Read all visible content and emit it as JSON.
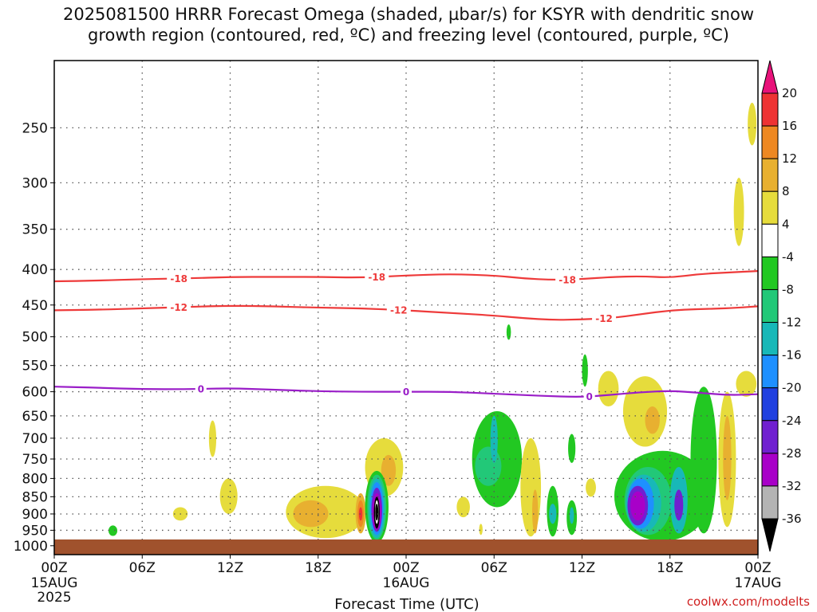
{
  "title_line1": "2025081500 HRRR Forecast Omega (shaded, µbar/s) for KSYR with dendritic snow",
  "title_line2": "growth region (contoured, red, ºC) and freezing level (contoured, purple, ºC)",
  "credit": "coolwx.com/modelts",
  "chart_data": {
    "type": "contour",
    "title": "2025081500 HRRR Forecast Omega (shaded, µbar/s) for KSYR with dendritic snow growth region (contoured, red, ºC) and freezing level (contoured, purple, ºC)",
    "xlabel": "Forecast Time (UTC)",
    "ylabel": "",
    "x_range_hours": [
      0,
      48
    ],
    "x_ticks": [
      {
        "hour": 0,
        "label": "00Z",
        "sub1": "15AUG",
        "sub2": "2025"
      },
      {
        "hour": 6,
        "label": "06Z",
        "sub1": "",
        "sub2": ""
      },
      {
        "hour": 12,
        "label": "12Z",
        "sub1": "",
        "sub2": ""
      },
      {
        "hour": 18,
        "label": "18Z",
        "sub1": "",
        "sub2": ""
      },
      {
        "hour": 24,
        "label": "00Z",
        "sub1": "16AUG",
        "sub2": ""
      },
      {
        "hour": 30,
        "label": "06Z",
        "sub1": "",
        "sub2": ""
      },
      {
        "hour": 36,
        "label": "12Z",
        "sub1": "",
        "sub2": ""
      },
      {
        "hour": 42,
        "label": "18Z",
        "sub1": "",
        "sub2": ""
      },
      {
        "hour": 48,
        "label": "00Z",
        "sub1": "17AUG",
        "sub2": ""
      }
    ],
    "y_ticks_hpa": [
      250,
      300,
      350,
      400,
      450,
      500,
      550,
      600,
      650,
      700,
      750,
      800,
      850,
      900,
      950,
      1000
    ],
    "y_range_hpa": [
      200,
      1030
    ],
    "y_scale": "log",
    "grid": true,
    "colorbar": {
      "label_values": [
        20,
        16,
        12,
        8,
        4,
        -4,
        -8,
        -12,
        -16,
        -20,
        -24,
        -28,
        -32,
        -36
      ],
      "colors": [
        "#e8127a",
        "#ee3333",
        "#ee8822",
        "#e8b030",
        "#e6dc3c",
        "#ffffff",
        "#22c822",
        "#22c878",
        "#18b8b8",
        "#1e90ff",
        "#2040e0",
        "#7020d0",
        "#a800c8",
        "#b4b4b4",
        "#000000"
      ]
    },
    "red_contours": [
      {
        "level": -18,
        "label": "-18",
        "points": [
          [
            0,
            416
          ],
          [
            3,
            415
          ],
          [
            6,
            413
          ],
          [
            9,
            412
          ],
          [
            12,
            410
          ],
          [
            15,
            410
          ],
          [
            18,
            410
          ],
          [
            21,
            411
          ],
          [
            24,
            408
          ],
          [
            27,
            406
          ],
          [
            30,
            408
          ],
          [
            32,
            412
          ],
          [
            34,
            414
          ],
          [
            36,
            413
          ],
          [
            38,
            410
          ],
          [
            40,
            409
          ],
          [
            42,
            411
          ],
          [
            44,
            406
          ],
          [
            46,
            404
          ],
          [
            48,
            402
          ]
        ],
        "label_hours": [
          8.5,
          22,
          35
        ]
      },
      {
        "level": -12,
        "label": "-12",
        "points": [
          [
            0,
            458
          ],
          [
            3,
            457
          ],
          [
            6,
            455
          ],
          [
            9,
            453
          ],
          [
            12,
            451
          ],
          [
            15,
            452
          ],
          [
            18,
            454
          ],
          [
            21,
            455
          ],
          [
            24,
            458
          ],
          [
            27,
            462
          ],
          [
            30,
            466
          ],
          [
            32,
            470
          ],
          [
            34,
            473
          ],
          [
            36,
            472
          ],
          [
            38,
            470
          ],
          [
            40,
            464
          ],
          [
            42,
            458
          ],
          [
            44,
            456
          ],
          [
            46,
            455
          ],
          [
            48,
            452
          ]
        ],
        "label_hours": [
          8.5,
          23.5,
          37.5
        ]
      }
    ],
    "purple_contours": [
      {
        "level": 0,
        "label": "0",
        "points": [
          [
            0,
            590
          ],
          [
            3,
            592
          ],
          [
            6,
            595
          ],
          [
            9,
            595
          ],
          [
            12,
            593
          ],
          [
            15,
            596
          ],
          [
            18,
            599
          ],
          [
            21,
            600
          ],
          [
            24,
            600
          ],
          [
            27,
            600
          ],
          [
            30,
            604
          ],
          [
            33,
            608
          ],
          [
            36,
            611
          ],
          [
            38,
            606
          ],
          [
            40,
            601
          ],
          [
            42,
            598
          ],
          [
            44,
            602
          ],
          [
            46,
            607
          ],
          [
            48,
            605
          ]
        ],
        "label_hours": [
          10,
          24,
          36.5
        ]
      }
    ],
    "omega_regions": [
      {
        "hour": 4.0,
        "hw": 0.3,
        "top": 935,
        "bottom": 968,
        "value": -5
      },
      {
        "hour": 10.8,
        "hw": 0.25,
        "top": 660,
        "bottom": 745,
        "value": 5
      },
      {
        "hour": 8.6,
        "hw": 0.5,
        "top": 880,
        "bottom": 920,
        "value": 5
      },
      {
        "hour": 11.9,
        "hw": 0.6,
        "top": 800,
        "bottom": 900,
        "value": 5
      },
      {
        "hour": 18.5,
        "hw": 2.7,
        "top": 820,
        "bottom": 975,
        "value": 5
      },
      {
        "hour": 17.5,
        "hw": 1.2,
        "top": 860,
        "bottom": 940,
        "value": 9
      },
      {
        "hour": 20.9,
        "hw": 0.35,
        "top": 840,
        "bottom": 960,
        "value": 9
      },
      {
        "hour": 20.9,
        "hw": 0.22,
        "top": 860,
        "bottom": 940,
        "value": 14
      },
      {
        "hour": 20.9,
        "hw": 0.12,
        "top": 880,
        "bottom": 920,
        "value": 18
      },
      {
        "hour": 22.5,
        "hw": 1.3,
        "top": 700,
        "bottom": 850,
        "value": 5
      },
      {
        "hour": 22.8,
        "hw": 0.5,
        "top": 740,
        "bottom": 820,
        "value": 9
      },
      {
        "hour": 22.0,
        "hw": 0.8,
        "top": 780,
        "bottom": 990,
        "value": -6
      },
      {
        "hour": 22.0,
        "hw": 0.65,
        "top": 790,
        "bottom": 980,
        "value": -10
      },
      {
        "hour": 22.0,
        "hw": 0.55,
        "top": 800,
        "bottom": 975,
        "value": -14
      },
      {
        "hour": 22.0,
        "hw": 0.45,
        "top": 810,
        "bottom": 965,
        "value": -18
      },
      {
        "hour": 22.0,
        "hw": 0.37,
        "top": 825,
        "bottom": 955,
        "value": -26
      },
      {
        "hour": 22.0,
        "hw": 0.3,
        "top": 840,
        "bottom": 950,
        "value": -30
      },
      {
        "hour": 22.0,
        "hw": 0.2,
        "top": 850,
        "bottom": 945,
        "value": -40
      },
      {
        "hour": 22.0,
        "hw": 0.12,
        "top": 860,
        "bottom": 930,
        "value": 0
      },
      {
        "hour": 22.0,
        "hw": 0.09,
        "top": 870,
        "bottom": 920,
        "value": -40
      },
      {
        "hour": 27.9,
        "hw": 0.45,
        "top": 850,
        "bottom": 910,
        "value": 5
      },
      {
        "hour": 29.1,
        "hw": 0.12,
        "top": 930,
        "bottom": 965,
        "value": 5
      },
      {
        "hour": 30.2,
        "hw": 1.7,
        "top": 640,
        "bottom": 880,
        "value": -5
      },
      {
        "hour": 29.6,
        "hw": 0.9,
        "top": 720,
        "bottom": 820,
        "value": -9
      },
      {
        "hour": 30.0,
        "hw": 0.25,
        "top": 650,
        "bottom": 760,
        "value": -14
      },
      {
        "hour": 32.5,
        "hw": 0.7,
        "top": 700,
        "bottom": 970,
        "value": 5
      },
      {
        "hour": 32.8,
        "hw": 0.2,
        "top": 830,
        "bottom": 960,
        "value": 9
      },
      {
        "hour": 34.0,
        "hw": 0.4,
        "top": 820,
        "bottom": 970,
        "value": -5
      },
      {
        "hour": 34.0,
        "hw": 0.25,
        "top": 870,
        "bottom": 930,
        "value": -12
      },
      {
        "hour": 35.3,
        "hw": 0.25,
        "top": 690,
        "bottom": 760,
        "value": -5
      },
      {
        "hour": 35.3,
        "hw": 0.35,
        "top": 860,
        "bottom": 965,
        "value": -5
      },
      {
        "hour": 35.3,
        "hw": 0.15,
        "top": 880,
        "bottom": 930,
        "value": -12
      },
      {
        "hour": 31.0,
        "hw": 0.15,
        "top": 480,
        "bottom": 505,
        "value": -5
      },
      {
        "hour": 36.2,
        "hw": 0.2,
        "top": 530,
        "bottom": 590,
        "value": -5
      },
      {
        "hour": 36.6,
        "hw": 0.35,
        "top": 800,
        "bottom": 850,
        "value": 5
      },
      {
        "hour": 37.8,
        "hw": 0.7,
        "top": 560,
        "bottom": 630,
        "value": 5
      },
      {
        "hour": 40.3,
        "hw": 1.5,
        "top": 570,
        "bottom": 720,
        "value": 5
      },
      {
        "hour": 40.8,
        "hw": 0.5,
        "top": 630,
        "bottom": 690,
        "value": 9
      },
      {
        "hour": 41.5,
        "hw": 3.3,
        "top": 730,
        "bottom": 985,
        "value": -5
      },
      {
        "hour": 40.5,
        "hw": 1.6,
        "top": 770,
        "bottom": 965,
        "value": -9
      },
      {
        "hour": 40.2,
        "hw": 1.2,
        "top": 790,
        "bottom": 955,
        "value": -14
      },
      {
        "hour": 40.0,
        "hw": 0.9,
        "top": 800,
        "bottom": 945,
        "value": -18
      },
      {
        "hour": 39.8,
        "hw": 0.7,
        "top": 820,
        "bottom": 935,
        "value": -24
      },
      {
        "hour": 39.8,
        "hw": 0.5,
        "top": 835,
        "bottom": 920,
        "value": -29
      },
      {
        "hour": 42.6,
        "hw": 0.6,
        "top": 770,
        "bottom": 960,
        "value": -14
      },
      {
        "hour": 42.6,
        "hw": 0.3,
        "top": 830,
        "bottom": 920,
        "value": -24
      },
      {
        "hour": 44.3,
        "hw": 0.9,
        "top": 590,
        "bottom": 960,
        "value": -5
      },
      {
        "hour": 45.9,
        "hw": 0.6,
        "top": 600,
        "bottom": 940,
        "value": 5
      },
      {
        "hour": 45.9,
        "hw": 0.28,
        "top": 650,
        "bottom": 860,
        "value": 9
      },
      {
        "hour": 47.2,
        "hw": 0.7,
        "top": 560,
        "bottom": 610,
        "value": 5
      },
      {
        "hour": 47.6,
        "hw": 0.3,
        "top": 230,
        "bottom": 265,
        "value": 5
      },
      {
        "hour": 46.7,
        "hw": 0.35,
        "top": 295,
        "bottom": 370,
        "value": 5
      }
    ]
  }
}
